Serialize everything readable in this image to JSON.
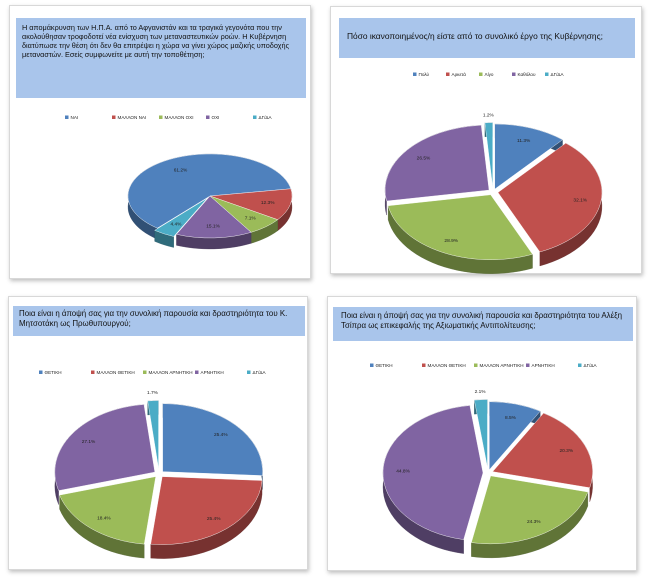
{
  "panels": [
    {
      "title": "Η απομάκρυνση των Η.Π.Α. από το Αφγανιστάν και τα τραγικά γεγονότα που την ακολούθησαν τροφοδοτεί νέα ενίσχυση των μεταναστευτικών ροών. Η Κυβέρνηση διατύπωσε την θέση ότι δεν θα επιτρέψει η χώρα να γίνει χώρος μαζικής υποδοχής μεταναστών. Εσείς συμφωνείτε με αυτή την τοποθέτηση;"
    },
    {
      "title": "Πόσο ικανοποιημένος/η  είστε από το συνολικό έργο της Κυβέρνησης;"
    },
    {
      "title": "Ποια είναι η άποψή σας για την συνολική παρουσία και δραστηριότητα του Κ. Μητσοτάκη ως Πρωθυπουργού;"
    },
    {
      "title": "Ποια είναι η άποψή σας για την συνολική παρουσία και δραστηριότητα του Αλέξη Τσίπρα ως επικεφαλής της Αξιωματικής Αντιπολίτευσης;"
    }
  ],
  "chart_data": [
    {
      "type": "pie",
      "title": "Η απομάκρυνση των Η.Π.Α. από το Αφγανιστάν και τα τραγικά γεγονότα που την ακολούθησαν τροφοδοτεί νέα ενίσχυση των μεταναστευτικών ροών. Η Κυβέρνηση διατύπωσε την θέση ότι δεν θα επιτρέψει η χώρα να γίνει χώρος μαζικής υποδοχής μεταναστών. Εσείς συμφωνείτε με αυτή την τοποθέτηση;",
      "categories": [
        "ΝΑΙ",
        "ΜΑΛΛΟΝ ΝΑΙ",
        "ΜΑΛΛΟΝ ΟΧΙ",
        "ΟΧΙ",
        "ΔΓ/ΔΑ"
      ],
      "values": [
        61.2,
        12.3,
        7.1,
        15.1,
        4.4
      ],
      "labels": [
        "61.2%",
        "12.3%",
        "7.1%",
        "15.1%",
        "4.4%"
      ],
      "colors": [
        "#4f81bd",
        "#c0504d",
        "#9bbb59",
        "#8064a2",
        "#4bacc6"
      ],
      "legend": "top",
      "start_from": "bottom-left"
    },
    {
      "type": "pie",
      "title": "Πόσο ικανοποιημένος/η  είστε από το συνολικό έργο της Κυβέρνησης;",
      "categories": [
        "Πολύ",
        "Αρκετά",
        "Λίγο",
        "Καθόλου",
        "ΔΓ/ΔΑ"
      ],
      "values": [
        11.3,
        32.1,
        28.9,
        26.5,
        1.2
      ],
      "labels": [
        "11.3%",
        "32.1%",
        "28.9%",
        "26.5%",
        "1.2%"
      ],
      "colors": [
        "#4f81bd",
        "#c0504d",
        "#9bbb59",
        "#8064a2",
        "#4bacc6"
      ],
      "legend": "top",
      "start_from": "top"
    },
    {
      "type": "pie",
      "title": "Ποια είναι η άποψή σας για την συνολική παρουσία και δραστηριότητα του Κ. Μητσοτάκη ως Πρωθυπουργού;",
      "categories": [
        "ΘΕΤΙΚΗ",
        "ΜΑΛΛΟΝ ΘΕΤΙΚΗ",
        "ΜΑΛΛΟΝ ΑΡΝΗΤΙΚΗ",
        "ΑΡΝΗΤΙΚΗ",
        "ΔΓ/ΔΑ"
      ],
      "values": [
        25.4,
        25.4,
        18.4,
        27.1,
        1.7
      ],
      "labels": [
        "25.4%",
        "25.4%",
        "18.4%",
        "27.1%",
        "1.7%"
      ],
      "colors": [
        "#4f81bd",
        "#c0504d",
        "#9bbb59",
        "#8064a2",
        "#4bacc6"
      ],
      "legend": "top",
      "start_from": "top"
    },
    {
      "type": "pie",
      "title": "Ποια είναι η άποψή σας για την συνολική παρουσία και δραστηριότητα του Αλέξη Τσίπρα ως επικεφαλής της Αξιωματικής Αντιπολίτευσης;",
      "categories": [
        "ΘΕΤΙΚΗ",
        "ΜΑΛΛΟΝ ΘΕΤΙΚΗ",
        "ΜΑΛΛΟΝ ΑΡΝΗΤΙΚΗ",
        "ΑΡΝΗΤΙΚΗ",
        "ΔΓ/ΔΑ"
      ],
      "values": [
        8.5,
        20.3,
        24.3,
        44.8,
        2.1
      ],
      "labels": [
        "8.5%",
        "20.3%",
        "24.3%",
        "44.8%",
        "2.1%"
      ],
      "colors": [
        "#4f81bd",
        "#c0504d",
        "#9bbb59",
        "#8064a2",
        "#4bacc6"
      ],
      "legend": "top",
      "start_from": "top"
    }
  ]
}
